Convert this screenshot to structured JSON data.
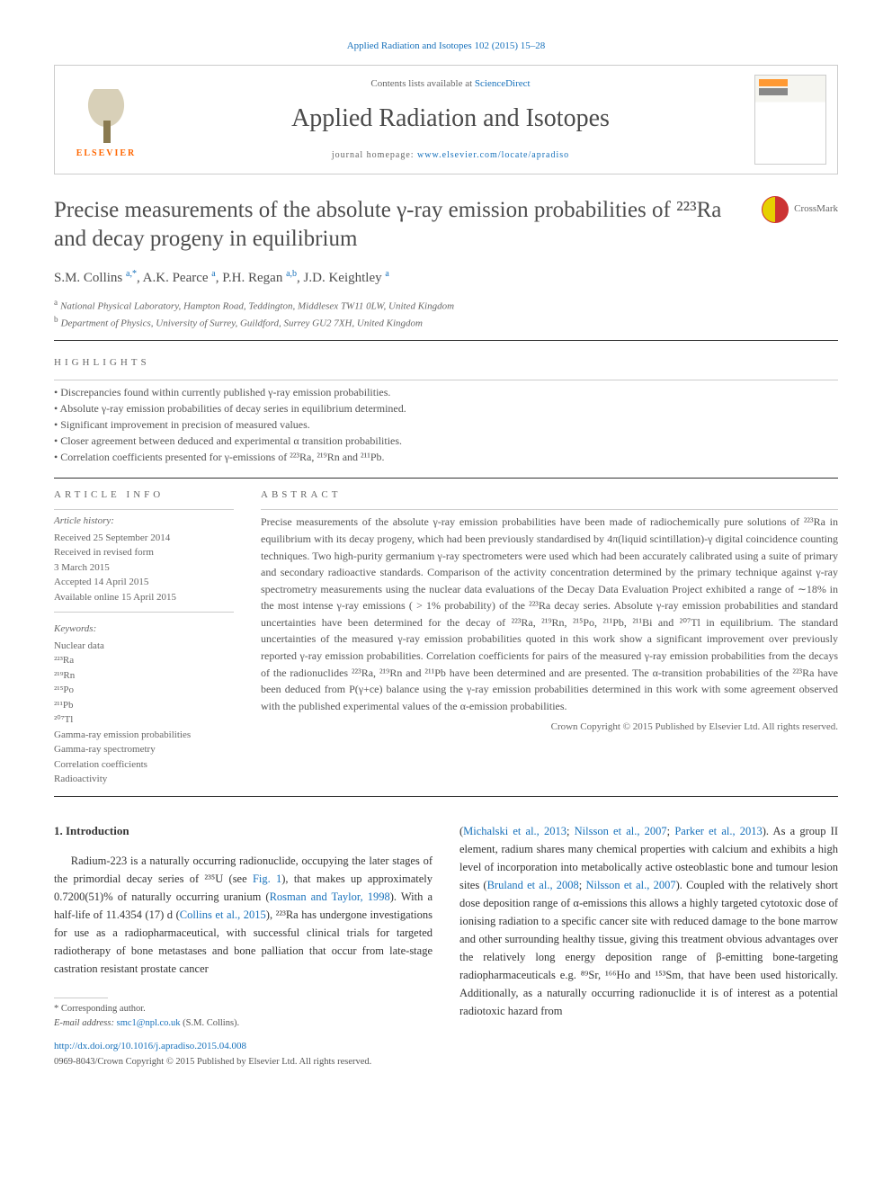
{
  "top_citation": "Applied Radiation and Isotopes 102 (2015) 15–28",
  "header": {
    "contents_prefix": "Contents lists available at ",
    "contents_link": "ScienceDirect",
    "journal": "Applied Radiation and Isotopes",
    "homepage_prefix": "journal homepage: ",
    "homepage_link": "www.elsevier.com/locate/apradiso",
    "elsevier": "ELSEVIER"
  },
  "crossmark_label": "CrossMark",
  "title": "Precise measurements of the absolute γ-ray emission probabilities of ²²³Ra and decay progeny in equilibrium",
  "authors_html": "S.M. Collins <sup>a,*</sup>, A.K. Pearce <sup>a</sup>, P.H. Regan <sup>a,b</sup>, J.D. Keightley <sup>a</sup>",
  "affiliations": {
    "a": "National Physical Laboratory, Hampton Road, Teddington, Middlesex TW11 0LW, United Kingdom",
    "b": "Department of Physics, University of Surrey, Guildford, Surrey GU2 7XH, United Kingdom"
  },
  "highlights_label": "HIGHLIGHTS",
  "highlights": [
    "Discrepancies found within currently published γ-ray emission probabilities.",
    "Absolute γ-ray emission probabilities of decay series in equilibrium determined.",
    "Significant improvement in precision of measured values.",
    "Closer agreement between deduced and experimental α transition probabilities.",
    "Correlation coefficients presented for γ-emissions of ²²³Ra, ²¹⁹Rn and ²¹¹Pb."
  ],
  "article_info_label": "ARTICLE INFO",
  "abstract_label": "ABSTRACT",
  "history_label": "Article history:",
  "history": [
    "Received 25 September 2014",
    "Received in revised form",
    "3 March 2015",
    "Accepted 14 April 2015",
    "Available online 15 April 2015"
  ],
  "keywords_label": "Keywords:",
  "keywords": [
    "Nuclear data",
    "²²³Ra",
    "²¹⁹Rn",
    "²¹⁵Po",
    "²¹¹Pb",
    "²⁰⁷Tl",
    "Gamma-ray emission probabilities",
    "Gamma-ray spectrometry",
    "Correlation coefficients",
    "Radioactivity"
  ],
  "abstract": "Precise measurements of the absolute γ-ray emission probabilities have been made of radiochemically pure solutions of ²²³Ra in equilibrium with its decay progeny, which had been previously standardised by 4π(liquid scintillation)-γ digital coincidence counting techniques. Two high-purity germanium γ-ray spectrometers were used which had been accurately calibrated using a suite of primary and secondary radioactive standards. Comparison of the activity concentration determined by the primary technique against γ-ray spectrometry measurements using the nuclear data evaluations of the Decay Data Evaluation Project exhibited a range of ∼18% in the most intense γ-ray emissions ( > 1% probability) of the ²²³Ra decay series. Absolute γ-ray emission probabilities and standard uncertainties have been determined for the decay of ²²³Ra, ²¹⁹Rn, ²¹⁵Po, ²¹¹Pb, ²¹¹Bi and ²⁰⁷Tl in equilibrium. The standard uncertainties of the measured γ-ray emission probabilities quoted in this work show a significant improvement over previously reported γ-ray emission probabilities. Correlation coefficients for pairs of the measured γ-ray emission probabilities from the decays of the radionuclides ²²³Ra, ²¹⁹Rn and ²¹¹Pb have been determined and are presented. The α-transition probabilities of the ²²³Ra have been deduced from P(γ+ce) balance using the γ-ray emission probabilities determined in this work with some agreement observed with the published experimental values of the α-emission probabilities.",
  "abstract_copyright": "Crown Copyright © 2015 Published by Elsevier Ltd. All rights reserved.",
  "intro_heading": "1. Introduction",
  "intro_col1": "Radium-223 is a naturally occurring radionuclide, occupying the later stages of the primordial decay series of ²³⁵U (see Fig. 1), that makes up approximately 0.7200(51)% of naturally occurring uranium (Rosman and Taylor, 1998). With a half-life of 11.4354 (17) d (Collins et al., 2015), ²²³Ra has undergone investigations for use as a radiopharmaceutical, with successful clinical trials for targeted radiotherapy of bone metastases and bone palliation that occur from late-stage castration resistant prostate cancer",
  "intro_col2": "(Michalski et al., 2013; Nilsson et al., 2007; Parker et al., 2013). As a group II element, radium shares many chemical properties with calcium and exhibits a high level of incorporation into metabolically active osteoblastic bone and tumour lesion sites (Bruland et al., 2008; Nilsson et al., 2007). Coupled with the relatively short dose deposition range of α-emissions this allows a highly targeted cytotoxic dose of ionising radiation to a specific cancer site with reduced damage to the bone marrow and other surrounding healthy tissue, giving this treatment obvious advantages over the relatively long energy deposition range of β-emitting bone-targeting radiopharmaceuticals e.g. ⁸⁹Sr, ¹⁶⁶Ho and ¹⁵³Sm, that have been used historically. Additionally, as a naturally occurring radionuclide it is of interest as a potential radiotoxic hazard from",
  "corresponding": "* Corresponding author.",
  "email_label": "E-mail address: ",
  "email": "smc1@npl.co.uk",
  "email_suffix": " (S.M. Collins).",
  "doi_link": "http://dx.doi.org/10.1016/j.apradiso.2015.04.008",
  "bottom_copyright": "0969-8043/Crown Copyright © 2015 Published by Elsevier Ltd. All rights reserved.",
  "refs": {
    "fig1": "Fig. 1",
    "rosman": "Rosman and Taylor, 1998",
    "collins": "Collins et al., 2015",
    "michalski": "Michalski et al., 2013",
    "nilsson": "Nilsson et al., 2007",
    "parker": "Parker et al., 2013",
    "bruland": "Bruland et al., 2008"
  },
  "colors": {
    "link": "#1771bb",
    "text": "#333333",
    "muted": "#666666",
    "orange": "#ff6600",
    "rule": "#333333"
  }
}
